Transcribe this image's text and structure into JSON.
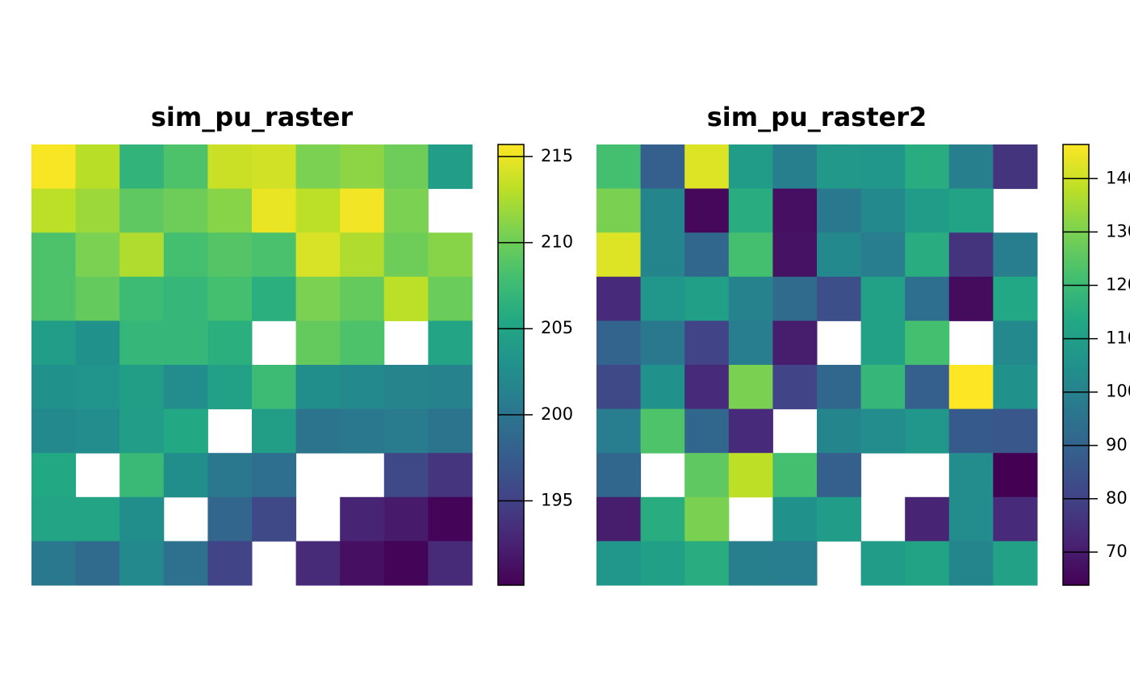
{
  "chart_data": [
    {
      "type": "heatmap",
      "title": "sim_pu_raster",
      "colormap": "viridis",
      "zlim": [
        190.1,
        215.7
      ],
      "zticks": [
        195,
        200,
        205,
        210,
        215
      ],
      "values": [
        [
          215.5,
          213,
          206.7,
          208.5,
          213.6,
          213.9,
          210.6,
          211.3,
          210,
          204.2
        ],
        [
          213.1,
          211.9,
          209.3,
          210,
          211.1,
          214.9,
          213.1,
          215.2,
          210.6,
          null
        ],
        [
          208.5,
          210.6,
          212.6,
          208,
          208.8,
          208.3,
          214.2,
          212.6,
          210,
          211.1
        ],
        [
          208.5,
          209.6,
          207.5,
          207,
          208,
          206.2,
          210.6,
          209.6,
          213.1,
          209.8
        ],
        [
          204.2,
          202.9,
          207,
          207,
          206.2,
          null,
          209.6,
          208.5,
          null,
          205
        ],
        [
          202.9,
          203.2,
          204.4,
          202.4,
          204.7,
          207.5,
          202.6,
          202.1,
          201.6,
          201.4
        ],
        [
          202.1,
          202.4,
          204.2,
          205.5,
          null,
          204.4,
          199.8,
          200.3,
          200.8,
          199.8
        ],
        [
          205.5,
          null,
          207.2,
          202.6,
          200.3,
          199.3,
          null,
          null,
          195.7,
          193.9
        ],
        [
          205,
          205,
          202.6,
          null,
          198.5,
          195.7,
          null,
          192.7,
          191.9,
          190.4
        ],
        [
          200.3,
          199,
          202.1,
          199.6,
          195.2,
          null,
          193.2,
          191.1,
          190.4,
          193.2
        ]
      ]
    },
    {
      "type": "heatmap",
      "title": "sim_pu_raster2",
      "colormap": "viridis",
      "zlim": [
        63.8,
        146.4
      ],
      "zticks": [
        70,
        80,
        90,
        100,
        110,
        120,
        130,
        140
      ],
      "values": [
        [
          121.6,
          88.6,
          142.3,
          109.2,
          99.3,
          107.6,
          106.8,
          115,
          99.3,
          76.2
        ],
        [
          129.9,
          101,
          65.5,
          115,
          67.1,
          96.8,
          102.6,
          109.2,
          111.7,
          null
        ],
        [
          142.3,
          101,
          91.1,
          121.6,
          67.9,
          102.6,
          98.5,
          115,
          76.2,
          98.5
        ],
        [
          73.7,
          106.8,
          110.1,
          100.1,
          92.7,
          83.6,
          110.9,
          93.5,
          66.3,
          113.4
        ],
        [
          90.2,
          96.8,
          80.3,
          98.5,
          70.4,
          null,
          110.9,
          121.6,
          null,
          102.6
        ],
        [
          82,
          105.1,
          73.7,
          129.9,
          80.3,
          91.1,
          118.3,
          88.6,
          146.4,
          105.1
        ],
        [
          98.5,
          123.3,
          91.1,
          73.7,
          null,
          101,
          103.4,
          106.8,
          86.9,
          86.1
        ],
        [
          91.1,
          null,
          125.8,
          138.1,
          121.6,
          88.6,
          null,
          null,
          103.4,
          63.8
        ],
        [
          70.4,
          115,
          129.9,
          null,
          105.1,
          109.2,
          null,
          72.1,
          103.4,
          73.7
        ],
        [
          106.8,
          110.1,
          115,
          99.3,
          98.5,
          null,
          109.2,
          111.7,
          101,
          110.9
        ]
      ]
    }
  ]
}
